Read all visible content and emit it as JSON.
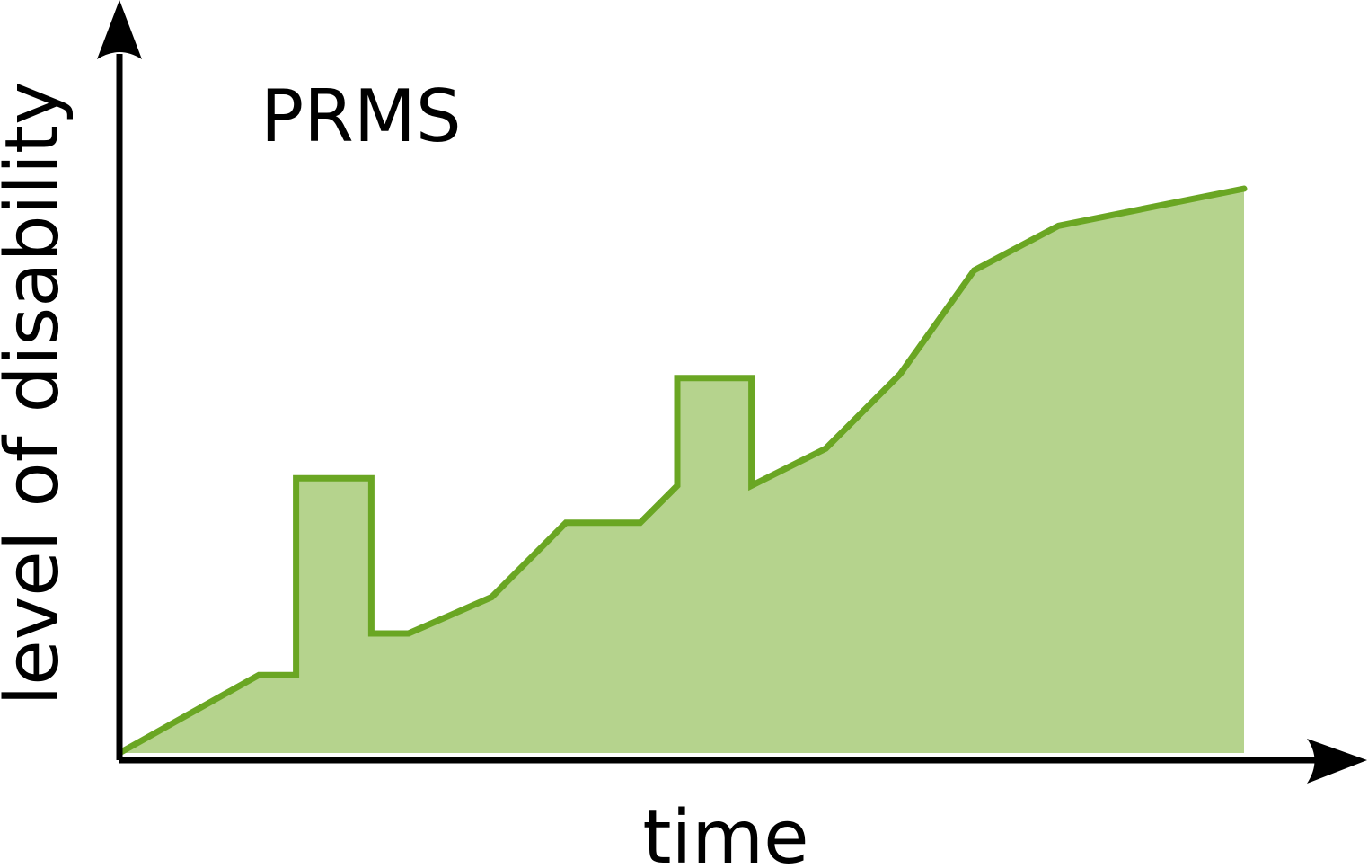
{
  "chart_data": {
    "type": "area",
    "title": "PRMS",
    "xlabel": "time",
    "ylabel": "level of disability",
    "x_ticks": "none",
    "y_ticks": "none",
    "grid": false,
    "legend": "none",
    "xlim": [
      0,
      100
    ],
    "ylim": [
      0,
      100
    ],
    "colors": {
      "line": "#6aa623",
      "fill": "#b5d38d",
      "axis": "#000000"
    },
    "series": [
      {
        "x": [
          0,
          12.4,
          15.7,
          15.7,
          22.4,
          22.4,
          25.7,
          33.1,
          39.7,
          46.3,
          49.6,
          49.6,
          56.2,
          56.2,
          62.8,
          69.4,
          76.0,
          83.5,
          100.0
        ],
        "y": [
          0,
          10.5,
          10.5,
          37.0,
          37.0,
          16.1,
          16.1,
          21.0,
          31.0,
          31.0,
          36.0,
          50.5,
          50.5,
          36.0,
          41.0,
          51.0,
          65.0,
          71.0,
          76.0
        ]
      }
    ]
  }
}
